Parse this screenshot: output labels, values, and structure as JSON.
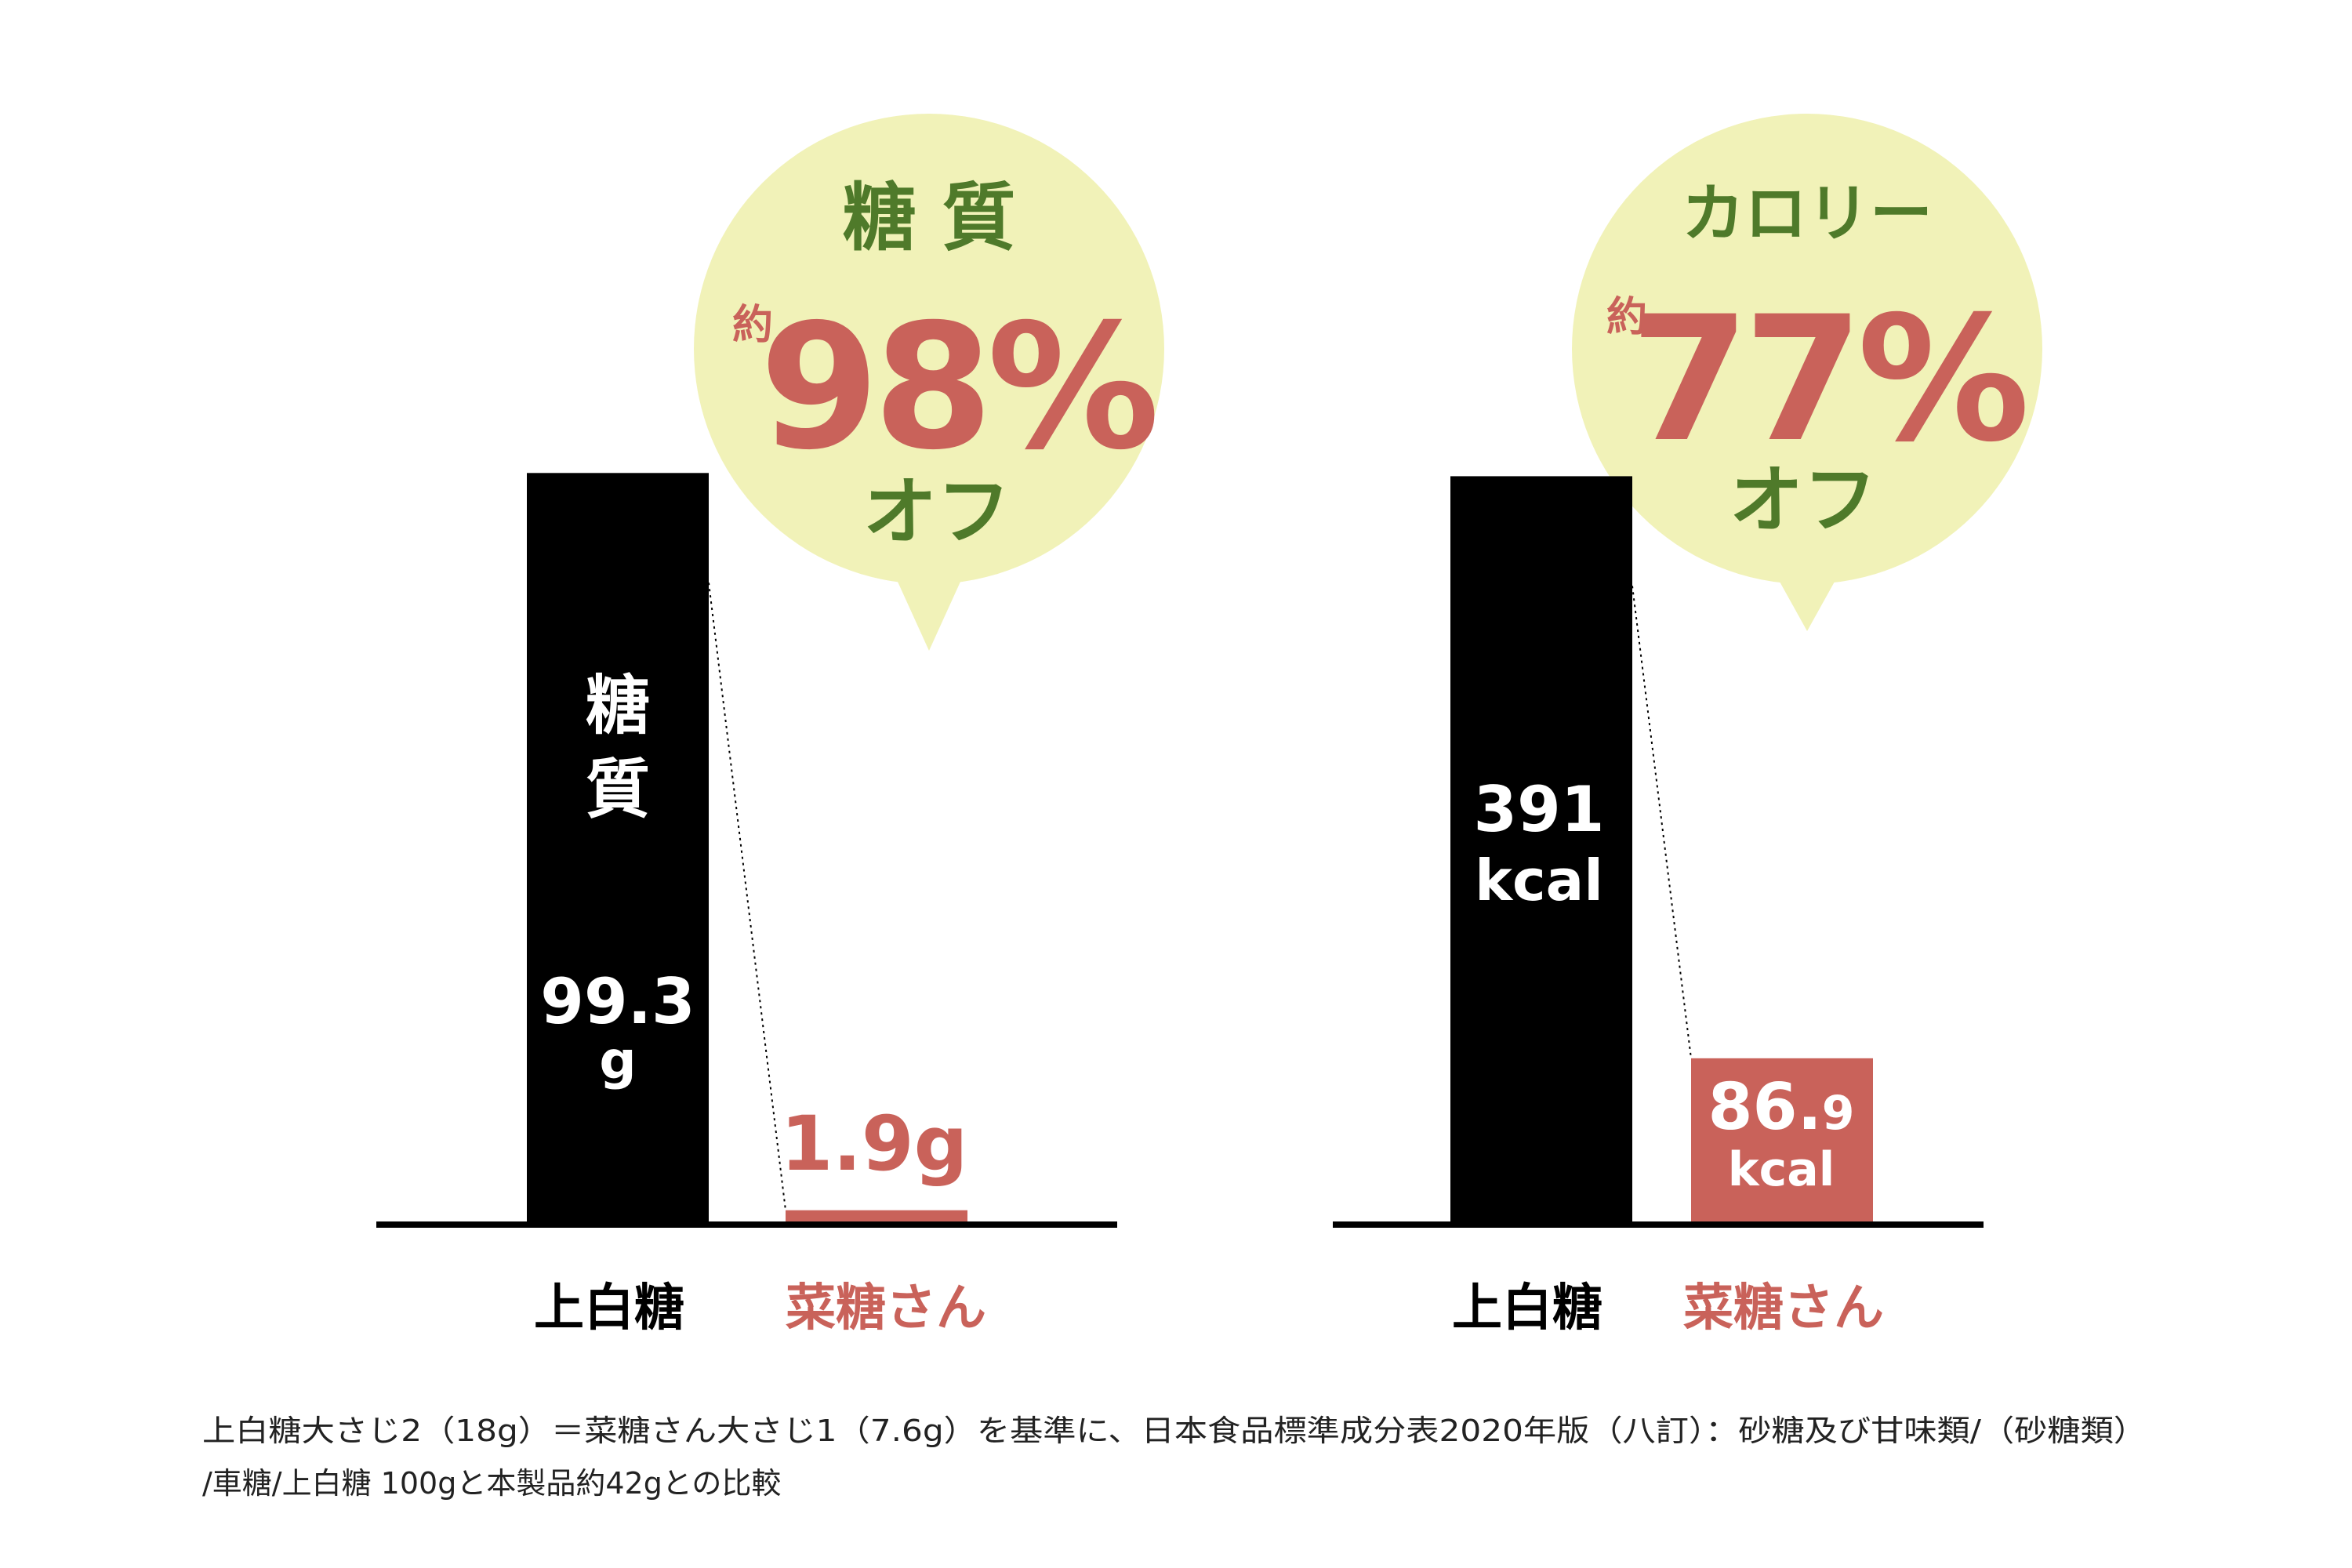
{
  "colors": {
    "black": "#000000",
    "salmon": "#c9625a",
    "green": "#4f7a2a",
    "bubble": "#f1f2b8",
    "white": "#ffffff"
  },
  "chart_data": [
    {
      "type": "bar",
      "categories": [
        "上白糖",
        "菜糖さん"
      ],
      "values": [
        99.3,
        1.9
      ],
      "unit": "g",
      "bar_labels": {
        "black_heading": "糖\n質",
        "black_value": "99.3",
        "black_unit": "g",
        "salmon_value": "1.9g"
      },
      "callout": {
        "heading": "糖 質",
        "prefix": "約",
        "percent": "98%",
        "suffix": "オフ"
      },
      "ylim": [
        0,
        110
      ]
    },
    {
      "type": "bar",
      "categories": [
        "上白糖",
        "菜糖さん"
      ],
      "values": [
        391,
        86.9
      ],
      "unit": "kcal",
      "bar_labels": {
        "black_value": "391",
        "black_unit": "kcal",
        "salmon_value_main": "86.",
        "salmon_value_small": "9",
        "salmon_unit": "kcal"
      },
      "callout": {
        "heading": "カロリー",
        "prefix": "約",
        "percent": "77%",
        "suffix": "オフ"
      },
      "ylim": [
        0,
        435
      ]
    }
  ],
  "footnote": {
    "line1": "上白糖大さじ2（18g）＝菜糖さん大さじ1（7.6g）を基準に、日本食品標準成分表2020年版（八訂）：砂糖及び甘味類/（砂糖類）",
    "line2": "/車糖/上白糖 100gと本製品約42gとの比較"
  }
}
